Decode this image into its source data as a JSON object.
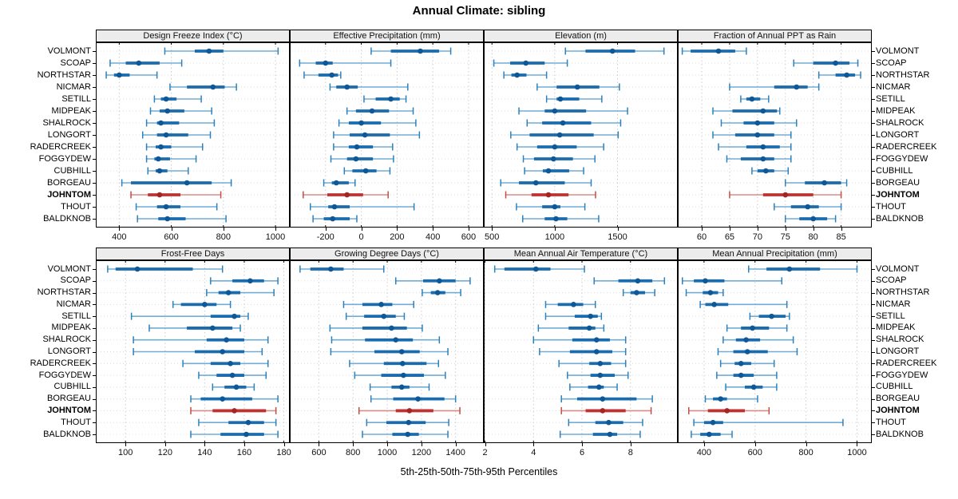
{
  "chart_data": {
    "type": "dot-whisker-trellis",
    "title": "Annual Climate: sibling",
    "xlabel": "5th-25th-50th-75th-95th Percentiles",
    "percentile_labels": [
      "5th",
      "25th",
      "50th",
      "75th",
      "95th"
    ],
    "rows": 2,
    "cols": 4,
    "grid": "dotted",
    "legend_position": "none",
    "sites": [
      "VOLMONT",
      "SCOAP",
      "NORTHSTAR",
      "NICMAR",
      "SETILL",
      "MIDPEAK",
      "SHALROCK",
      "LONGORT",
      "RADERCREEK",
      "FOGGYDEW",
      "CUBHILL",
      "BORGEAU",
      "JOHNTOM",
      "THOUT",
      "BALDKNOB"
    ],
    "highlight_site": "JOHNTOM",
    "colors": {
      "normal": {
        "line": "#4f9bce",
        "cap": "#2e80ba",
        "bar": "#1a6cae",
        "dot": "#0e5897"
      },
      "highlight": {
        "line": "#d4736b",
        "cap": "#c44d44",
        "bar": "#bd3330",
        "dot": "#a42623"
      },
      "gridline": "#cccccc",
      "row_guide": "#dcdcdc",
      "strip_bg": "#ececec",
      "border": "#000000"
    },
    "panels": [
      {
        "title": "Design Freeze Index (°C)",
        "xlim": [
          310,
          1055
        ],
        "ticks": [
          400,
          600,
          800,
          1000
        ],
        "data": [
          [
            575,
            690,
            745,
            800,
            1010
          ],
          [
            365,
            425,
            475,
            555,
            640
          ],
          [
            350,
            380,
            400,
            440,
            545
          ],
          [
            595,
            660,
            760,
            805,
            850
          ],
          [
            535,
            560,
            580,
            620,
            715
          ],
          [
            520,
            555,
            585,
            650,
            755
          ],
          [
            505,
            545,
            560,
            630,
            765
          ],
          [
            490,
            545,
            580,
            665,
            750
          ],
          [
            505,
            540,
            560,
            600,
            720
          ],
          [
            505,
            535,
            550,
            595,
            695
          ],
          [
            510,
            540,
            555,
            585,
            665
          ],
          [
            410,
            445,
            660,
            755,
            830
          ],
          [
            445,
            510,
            555,
            635,
            790
          ],
          [
            465,
            545,
            580,
            635,
            775
          ],
          [
            470,
            550,
            585,
            655,
            810
          ]
        ]
      },
      {
        "title": "Effective Precipitation (mm)",
        "xlim": [
          -400,
          685
        ],
        "ticks": [
          -200,
          0,
          200,
          400,
          600
        ],
        "data": [
          [
            55,
            165,
            330,
            435,
            500
          ],
          [
            -345,
            -255,
            -200,
            -160,
            165
          ],
          [
            -320,
            -240,
            -165,
            -130,
            -115
          ],
          [
            -175,
            -140,
            -80,
            -20,
            260
          ],
          [
            15,
            80,
            165,
            215,
            250
          ],
          [
            -80,
            -30,
            60,
            155,
            290
          ],
          [
            -125,
            -70,
            0,
            110,
            305
          ],
          [
            -155,
            -65,
            20,
            160,
            325
          ],
          [
            -155,
            -70,
            -25,
            65,
            175
          ],
          [
            -170,
            -80,
            -30,
            65,
            180
          ],
          [
            -95,
            -50,
            25,
            85,
            160
          ],
          [
            -210,
            -165,
            -140,
            -70,
            -35
          ],
          [
            -325,
            -190,
            -80,
            10,
            150
          ],
          [
            -285,
            -185,
            -150,
            -65,
            295
          ],
          [
            -270,
            -210,
            -160,
            -65,
            -25
          ]
        ]
      },
      {
        "title": "Elevation (m)",
        "xlim": [
          435,
          1980
        ],
        "ticks": [
          500,
          1000,
          1500
        ],
        "data": [
          [
            1085,
            1245,
            1460,
            1640,
            1870
          ],
          [
            515,
            645,
            770,
            920,
            1100
          ],
          [
            595,
            655,
            700,
            775,
            935
          ],
          [
            860,
            1015,
            1180,
            1355,
            1515
          ],
          [
            935,
            1015,
            1045,
            1195,
            1375
          ],
          [
            715,
            920,
            1000,
            1250,
            1580
          ],
          [
            780,
            900,
            1065,
            1290,
            1525
          ],
          [
            650,
            800,
            1040,
            1310,
            1505
          ],
          [
            700,
            860,
            1000,
            1175,
            1390
          ],
          [
            750,
            835,
            990,
            1145,
            1320
          ],
          [
            760,
            905,
            950,
            1115,
            1230
          ],
          [
            570,
            715,
            850,
            1080,
            1290
          ],
          [
            610,
            815,
            950,
            1110,
            1325
          ],
          [
            695,
            900,
            1000,
            1045,
            1240
          ],
          [
            745,
            920,
            1010,
            1100,
            1350
          ]
        ]
      },
      {
        "title": "Fraction of Annual PPT as Rain",
        "xlim": [
          55.7,
          90.5
        ],
        "ticks": [
          60,
          65,
          70,
          75,
          80,
          85
        ],
        "data": [
          [
            56.5,
            58,
            63,
            66,
            68
          ],
          [
            76.5,
            80,
            84,
            86.5,
            88
          ],
          [
            81,
            84,
            86,
            87.5,
            88.5
          ],
          [
            65,
            73,
            77,
            79,
            81
          ],
          [
            67,
            68,
            69,
            70.5,
            72
          ],
          [
            62,
            65.5,
            71,
            73.5,
            74
          ],
          [
            63.5,
            67.5,
            70,
            73,
            77
          ],
          [
            62,
            66,
            70,
            73,
            76
          ],
          [
            63,
            68,
            71,
            74,
            76
          ],
          [
            64.5,
            67,
            71,
            73,
            76
          ],
          [
            69,
            70,
            71.5,
            73,
            75.5
          ],
          [
            75,
            78.5,
            82,
            85,
            86
          ],
          [
            65,
            71,
            75,
            80,
            85
          ],
          [
            73,
            76,
            79,
            81,
            85
          ],
          [
            75,
            77.5,
            80,
            82.5,
            84
          ]
        ]
      },
      {
        "title": "Frost-Free Days",
        "xlim": [
          85,
          183
        ],
        "ticks": [
          100,
          120,
          140,
          160,
          180
        ],
        "data": [
          [
            91,
            95,
            106,
            134,
            149
          ],
          [
            143,
            154,
            163,
            170,
            177
          ],
          [
            141,
            147,
            152,
            158,
            175
          ],
          [
            124,
            128,
            140,
            146,
            153
          ],
          [
            103,
            143,
            155,
            158,
            162
          ],
          [
            112,
            131,
            144,
            154,
            158
          ],
          [
            104,
            141,
            151,
            160,
            172
          ],
          [
            104,
            135,
            149,
            160,
            169
          ],
          [
            129,
            143,
            153,
            158,
            172
          ],
          [
            137,
            146,
            154,
            160,
            171
          ],
          [
            144,
            150,
            156,
            161,
            165
          ],
          [
            133,
            138,
            149,
            164,
            177
          ],
          [
            133,
            144,
            155,
            171,
            176
          ],
          [
            137,
            152,
            162,
            170,
            176
          ],
          [
            133,
            148,
            161,
            170,
            177
          ]
        ]
      },
      {
        "title": "Growing Degree Days (°C)",
        "xlim": [
          430,
          1565
        ],
        "ticks": [
          600,
          800,
          1000,
          1200,
          1400
        ],
        "data": [
          [
            490,
            550,
            670,
            745,
            980
          ],
          [
            1050,
            1210,
            1305,
            1400,
            1485
          ],
          [
            1205,
            1255,
            1295,
            1340,
            1430
          ],
          [
            745,
            855,
            965,
            1030,
            1155
          ],
          [
            760,
            865,
            980,
            1050,
            1100
          ],
          [
            665,
            855,
            1025,
            1115,
            1205
          ],
          [
            675,
            870,
            1050,
            1150,
            1305
          ],
          [
            670,
            925,
            1085,
            1190,
            1355
          ],
          [
            780,
            980,
            1090,
            1230,
            1300
          ],
          [
            810,
            965,
            1095,
            1215,
            1340
          ],
          [
            900,
            1025,
            1085,
            1130,
            1245
          ],
          [
            905,
            1035,
            1180,
            1335,
            1400
          ],
          [
            835,
            1050,
            1130,
            1270,
            1425
          ],
          [
            880,
            995,
            1125,
            1225,
            1360
          ],
          [
            855,
            1030,
            1120,
            1185,
            1355
          ]
        ]
      },
      {
        "title": "Mean Annual Air Temperature (°C)",
        "xlim": [
          1.95,
          9.95
        ],
        "ticks": [
          2,
          4,
          6,
          8
        ],
        "data": [
          [
            2.4,
            2.8,
            4.1,
            4.7,
            6.1
          ],
          [
            6.5,
            7.5,
            8.3,
            8.9,
            9.4
          ],
          [
            7.7,
            8.0,
            8.25,
            8.6,
            9.0
          ],
          [
            4.5,
            5.0,
            5.65,
            6.05,
            6.55
          ],
          [
            4.5,
            5.7,
            6.35,
            6.65,
            6.8
          ],
          [
            4.2,
            5.45,
            6.3,
            6.55,
            6.9
          ],
          [
            4.0,
            5.6,
            6.6,
            7.15,
            7.8
          ],
          [
            4.25,
            5.5,
            6.6,
            7.25,
            7.8
          ],
          [
            5.05,
            6.3,
            6.75,
            7.2,
            7.8
          ],
          [
            5.4,
            6.35,
            6.75,
            7.35,
            7.9
          ],
          [
            5.5,
            6.25,
            6.7,
            6.9,
            7.45
          ],
          [
            5.15,
            5.8,
            6.85,
            8.25,
            8.9
          ],
          [
            5.15,
            6.15,
            6.85,
            7.8,
            8.85
          ],
          [
            5.45,
            6.55,
            7.1,
            7.7,
            8.5
          ],
          [
            5.1,
            6.45,
            7.15,
            7.45,
            8.4
          ]
        ]
      },
      {
        "title": "Mean Annual Precipitation (mm)",
        "xlim": [
          297,
          1058
        ],
        "ticks": [
          400,
          600,
          800,
          1000
        ],
        "data": [
          [
            575,
            645,
            735,
            855,
            1000
          ],
          [
            315,
            360,
            405,
            480,
            705
          ],
          [
            330,
            395,
            425,
            455,
            475
          ],
          [
            385,
            405,
            440,
            495,
            725
          ],
          [
            580,
            615,
            665,
            720,
            735
          ],
          [
            490,
            545,
            590,
            655,
            725
          ],
          [
            475,
            525,
            565,
            620,
            750
          ],
          [
            455,
            515,
            570,
            650,
            765
          ],
          [
            465,
            520,
            545,
            585,
            675
          ],
          [
            450,
            515,
            545,
            595,
            685
          ],
          [
            485,
            560,
            595,
            630,
            685
          ],
          [
            405,
            435,
            465,
            490,
            610
          ],
          [
            340,
            415,
            490,
            560,
            655
          ],
          [
            360,
            400,
            435,
            475,
            945
          ],
          [
            350,
            385,
            420,
            465,
            510
          ]
        ]
      }
    ]
  }
}
